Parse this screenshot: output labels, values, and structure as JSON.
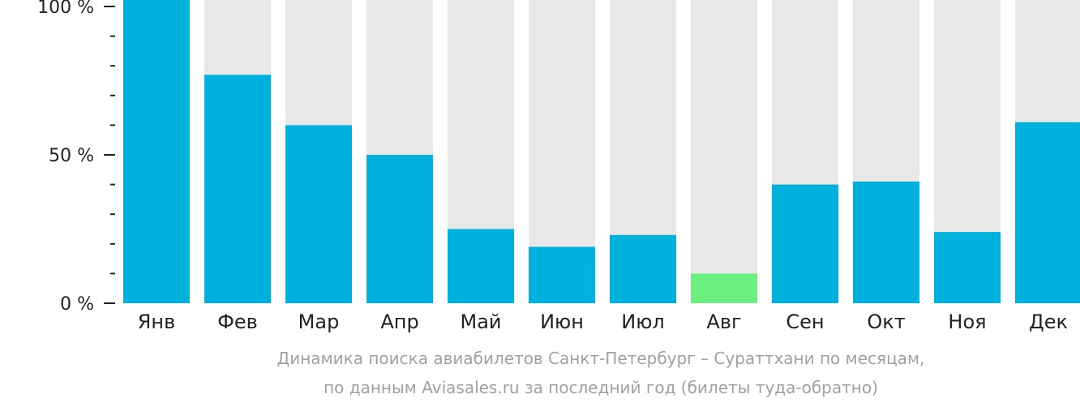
{
  "chart_data": {
    "type": "bar",
    "categories": [
      "Янв",
      "Фев",
      "Мар",
      "Апр",
      "Май",
      "Июн",
      "Июл",
      "Авг",
      "Сен",
      "Окт",
      "Ноя",
      "Дек"
    ],
    "values": [
      100,
      77,
      60,
      50,
      25,
      19,
      23,
      10,
      40,
      41,
      24,
      61
    ],
    "ylim": [
      0,
      100
    ],
    "ytick_labels": [
      "0 %",
      "50 %",
      "100 %"
    ],
    "ytick_values": [
      0,
      50,
      100
    ],
    "minor_tick_step": 10,
    "highlight_index": 7,
    "colors": {
      "bar": "#00b0dd",
      "highlight": "#6bf07f",
      "background_bar": "#e8e8e8",
      "axis": "#222222"
    },
    "caption_line1": "Динамика поиска авиабилетов Санкт-Петербург – Сураттхани по месяцам,",
    "caption_line2": "по данным Aviasales.ru за последний год (билеты туда-обратно)"
  }
}
